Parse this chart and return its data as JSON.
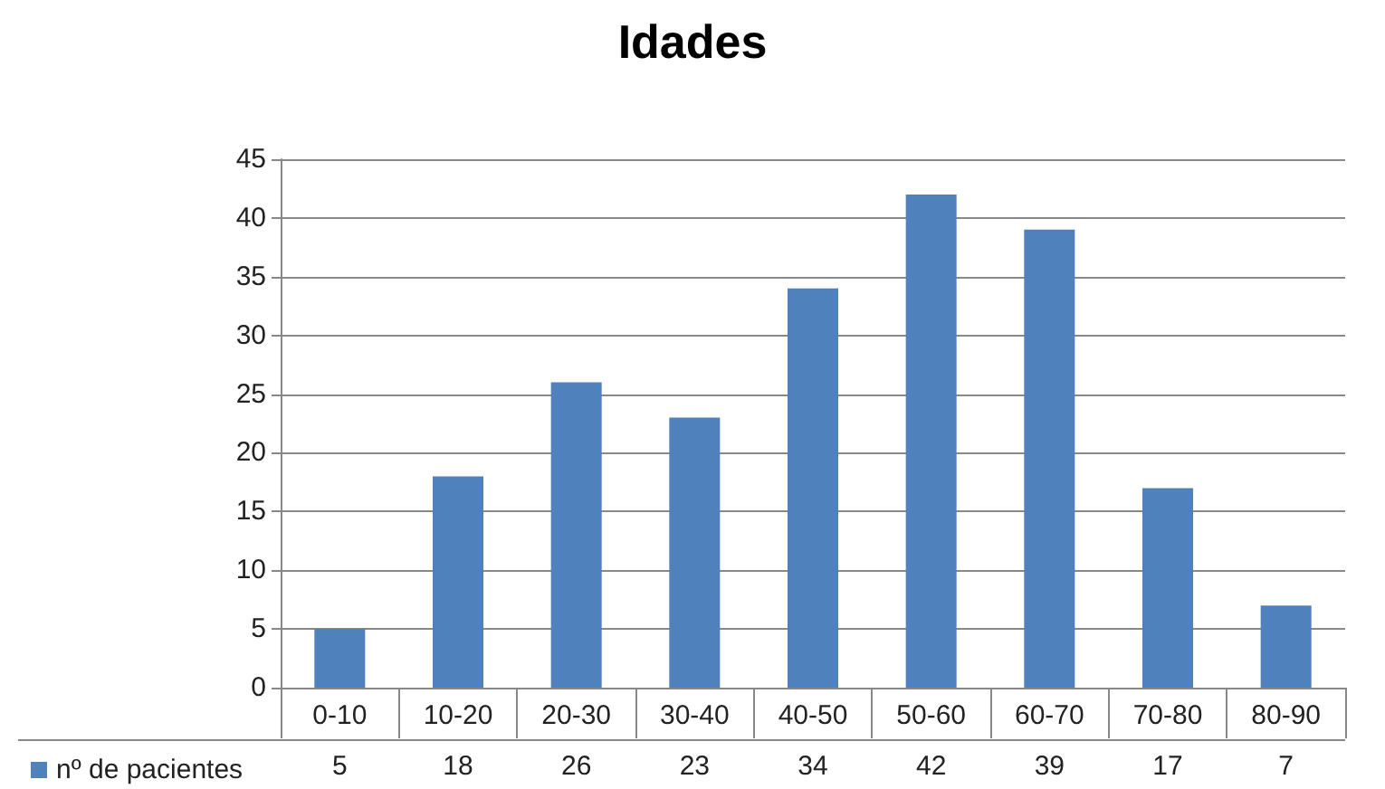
{
  "chart_data": {
    "type": "bar",
    "title": "Idades",
    "categories": [
      "0-10",
      "10-20",
      "20-30",
      "30-40",
      "40-50",
      "50-60",
      "60-70",
      "70-80",
      "80-90"
    ],
    "series": [
      {
        "name": "nº de pacientes",
        "color": "#4f81bd",
        "values": [
          5,
          18,
          26,
          23,
          34,
          42,
          39,
          17,
          7
        ]
      }
    ],
    "ylim": [
      0,
      45
    ],
    "yticks": [
      0,
      5,
      10,
      15,
      20,
      25,
      30,
      35,
      40,
      45
    ],
    "grid": "y",
    "legend": "bottom left",
    "data_labels": true
  }
}
